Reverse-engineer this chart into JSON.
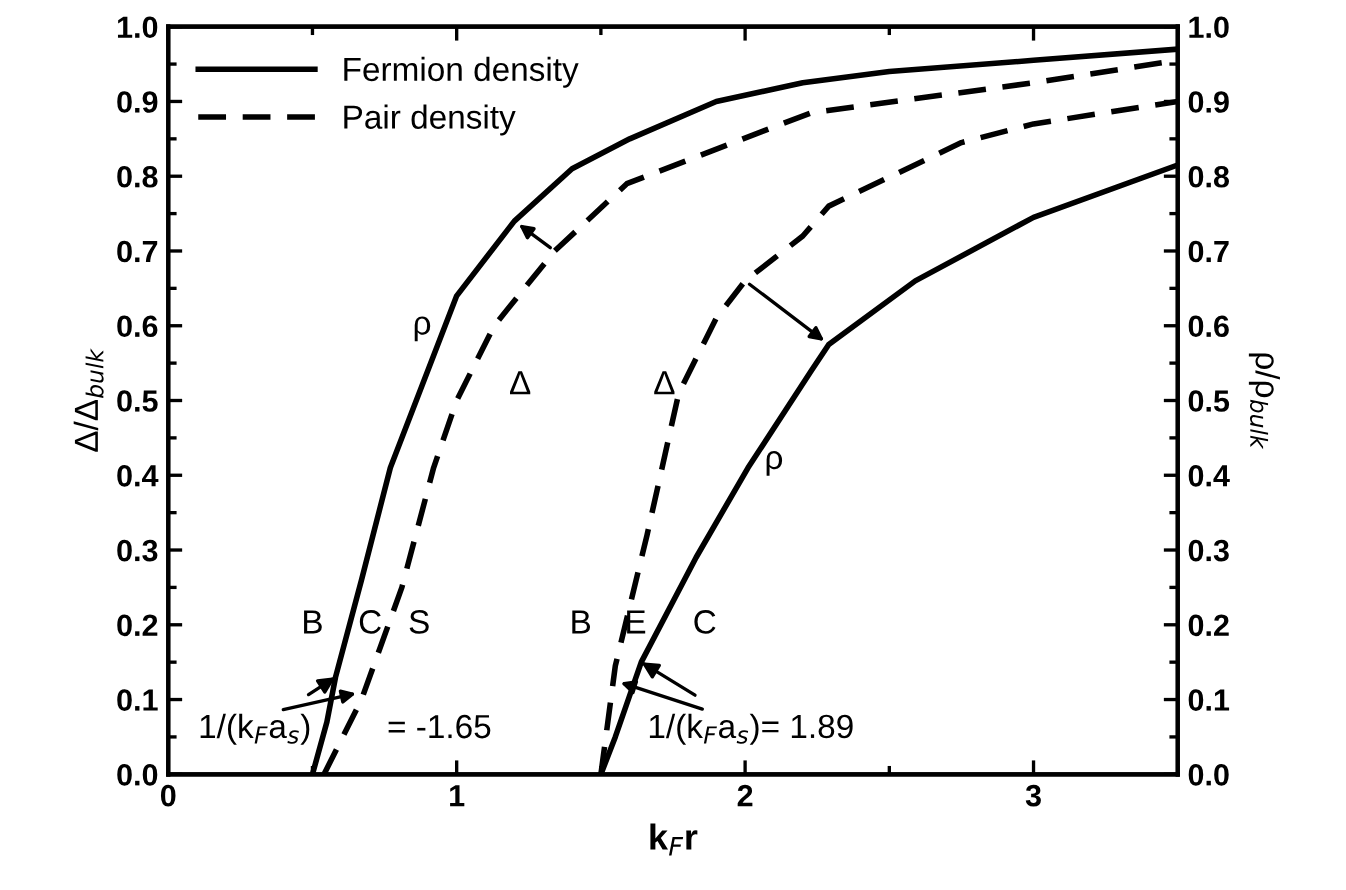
{
  "chart_data": {
    "type": "line",
    "xlabel": "k$_{F}$r",
    "ylabel": "Δ/Δ$_{bulk}$",
    "y2label": "ρ/ρ$_{bulk}$",
    "xlim": [
      0,
      3.5
    ],
    "xticks": [
      0,
      1,
      2,
      3
    ],
    "ylim": [
      0,
      1.0
    ],
    "yticks": [
      {
        "value": 0,
        "label": "0.0"
      },
      0.1,
      0.2,
      0.3,
      0.4,
      0.5,
      0.6,
      0.7,
      0.8,
      0.9,
      {
        "value": 1,
        "label": "1.0"
      }
    ],
    "y2lim": [
      0,
      1.0
    ],
    "y2ticks": [
      {
        "value": 0,
        "label": "0.0"
      },
      0.1,
      0.2,
      0.3,
      0.4,
      0.5,
      0.6,
      0.7,
      0.8,
      0.9,
      {
        "value": 1,
        "label": "1.0"
      }
    ],
    "legend": "top left",
    "grid": false,
    "series": [
      {
        "name": "Fermion density",
        "color": "#000000",
        "line_style": "solid",
        "x": [
          0.5,
          0.55,
          0.58,
          0.67,
          0.77,
          0.88,
          1.0,
          1.2,
          1.4,
          1.6,
          1.9,
          2.2,
          2.5,
          3.0,
          3.5
        ],
        "values": [
          0,
          0.07,
          0.13,
          0.26,
          0.41,
          0.52,
          0.64,
          0.74,
          0.81,
          0.85,
          0.9,
          0.925,
          0.94,
          0.955,
          0.97
        ]
      },
      {
        "name": "Pair density",
        "color": "#000000",
        "line_style": "dashed",
        "x": [
          0.54,
          0.67,
          0.81,
          0.92,
          1.0,
          1.13,
          1.34,
          1.59,
          2.06,
          2.23,
          3.0,
          3.5
        ],
        "values": [
          0,
          0.1,
          0.25,
          0.41,
          0.5,
          0.6,
          0.7,
          0.79,
          0.86,
          0.885,
          0.925,
          0.955
        ]
      },
      {
        "color": "#000000",
        "line_style": "dashed",
        "x": [
          1.5,
          1.55,
          1.66,
          1.77,
          1.9,
          2.0,
          2.2,
          2.29,
          2.75,
          3.0,
          3.5
        ],
        "values": [
          0,
          0.145,
          0.32,
          0.51,
          0.61,
          0.66,
          0.72,
          0.76,
          0.845,
          0.87,
          0.9
        ]
      },
      {
        "color": "#000000",
        "line_style": "solid",
        "x": [
          1.5,
          1.55,
          1.64,
          1.83,
          2.01,
          2.23,
          2.29,
          2.59,
          3.0,
          3.5
        ],
        "values": [
          0,
          0.05,
          0.15,
          0.29,
          0.41,
          0.54,
          0.575,
          0.66,
          0.745,
          0.815
        ]
      }
    ],
    "annotations": [
      "ρ",
      "Δ",
      "Δ",
      "ρ",
      "B",
      "C",
      "S",
      "B",
      "E",
      "C",
      {
        "text": "1/(k$_{F}$a$_{s}$)",
        "x": 0.58,
        "y": 0.13
      },
      "= -1.65",
      {
        "text": "1/(k$_{F}$a$_{s}$)= 1.89",
        "x": 1.64,
        "y": 0.15
      }
    ]
  }
}
